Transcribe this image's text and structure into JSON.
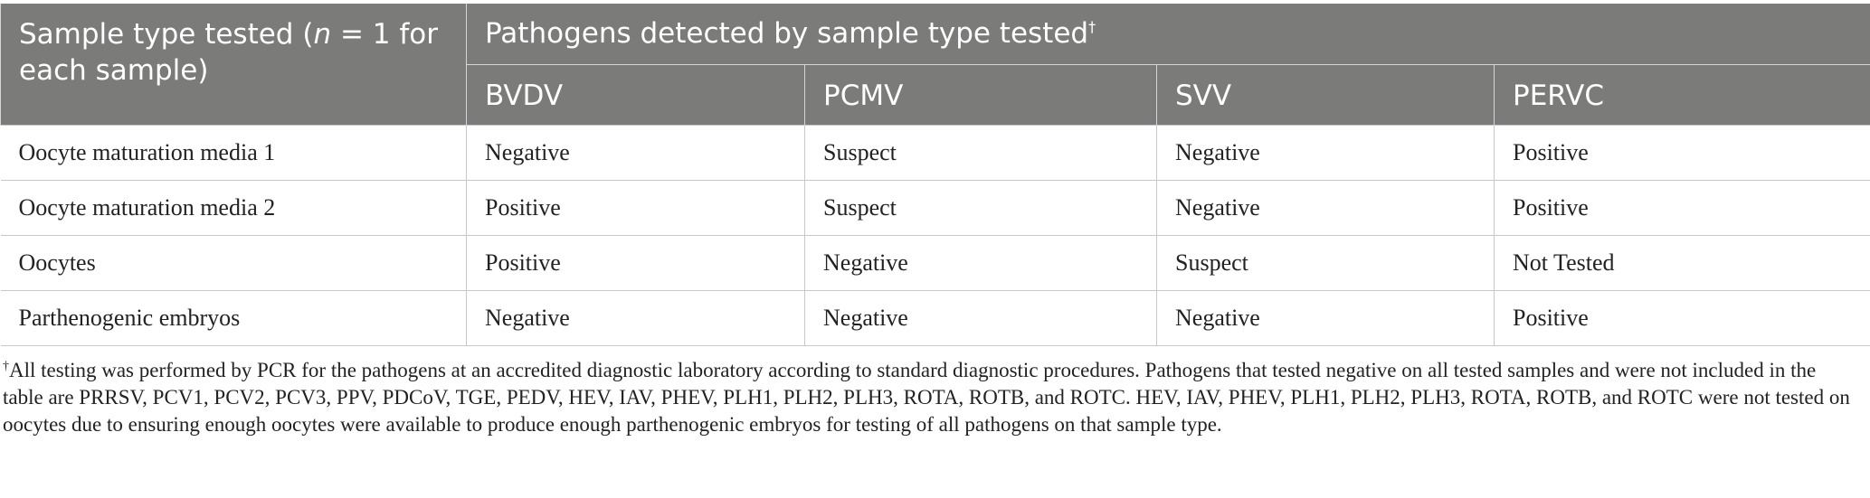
{
  "table": {
    "stub_header": {
      "prefix": "Sample type tested (",
      "n": "n",
      "suffix": " = 1 for each sample)"
    },
    "group_header": "Pathogens detected by sample type tested",
    "group_header_mark": "†",
    "columns": [
      "BVDV",
      "PCMV",
      "SVV",
      "PERVC"
    ],
    "rows": [
      {
        "sample": "Oocyte maturation media 1",
        "values": [
          "Negative",
          "Suspect",
          "Negative",
          "Positive"
        ]
      },
      {
        "sample": "Oocyte maturation media 2",
        "values": [
          "Positive",
          "Suspect",
          "Negative",
          "Positive"
        ]
      },
      {
        "sample": "Oocytes",
        "values": [
          "Positive",
          "Negative",
          "Suspect",
          "Not Tested"
        ]
      },
      {
        "sample": "Parthenogenic embryos",
        "values": [
          "Negative",
          "Negative",
          "Negative",
          "Positive"
        ]
      }
    ]
  },
  "footnote": {
    "mark": "†",
    "text": "All testing was performed by PCR for the pathogens at an accredited diagnostic laboratory according to standard diagnostic procedures. Pathogens that tested negative on all tested samples and were not included in the table are PRRSV, PCV1, PCV2, PCV3, PPV, PDCoV, TGE, PEDV, HEV, IAV, PHEV, PLH1, PLH2, PLH3, ROTA, ROTB, and ROTC. HEV, IAV, PHEV, PLH1, PLH2, PLH3, ROTA, ROTB, and ROTC were not tested on oocytes due to ensuring enough oocytes were available to produce enough parthenogenic embryos for testing of all pathogens on that sample type."
  }
}
